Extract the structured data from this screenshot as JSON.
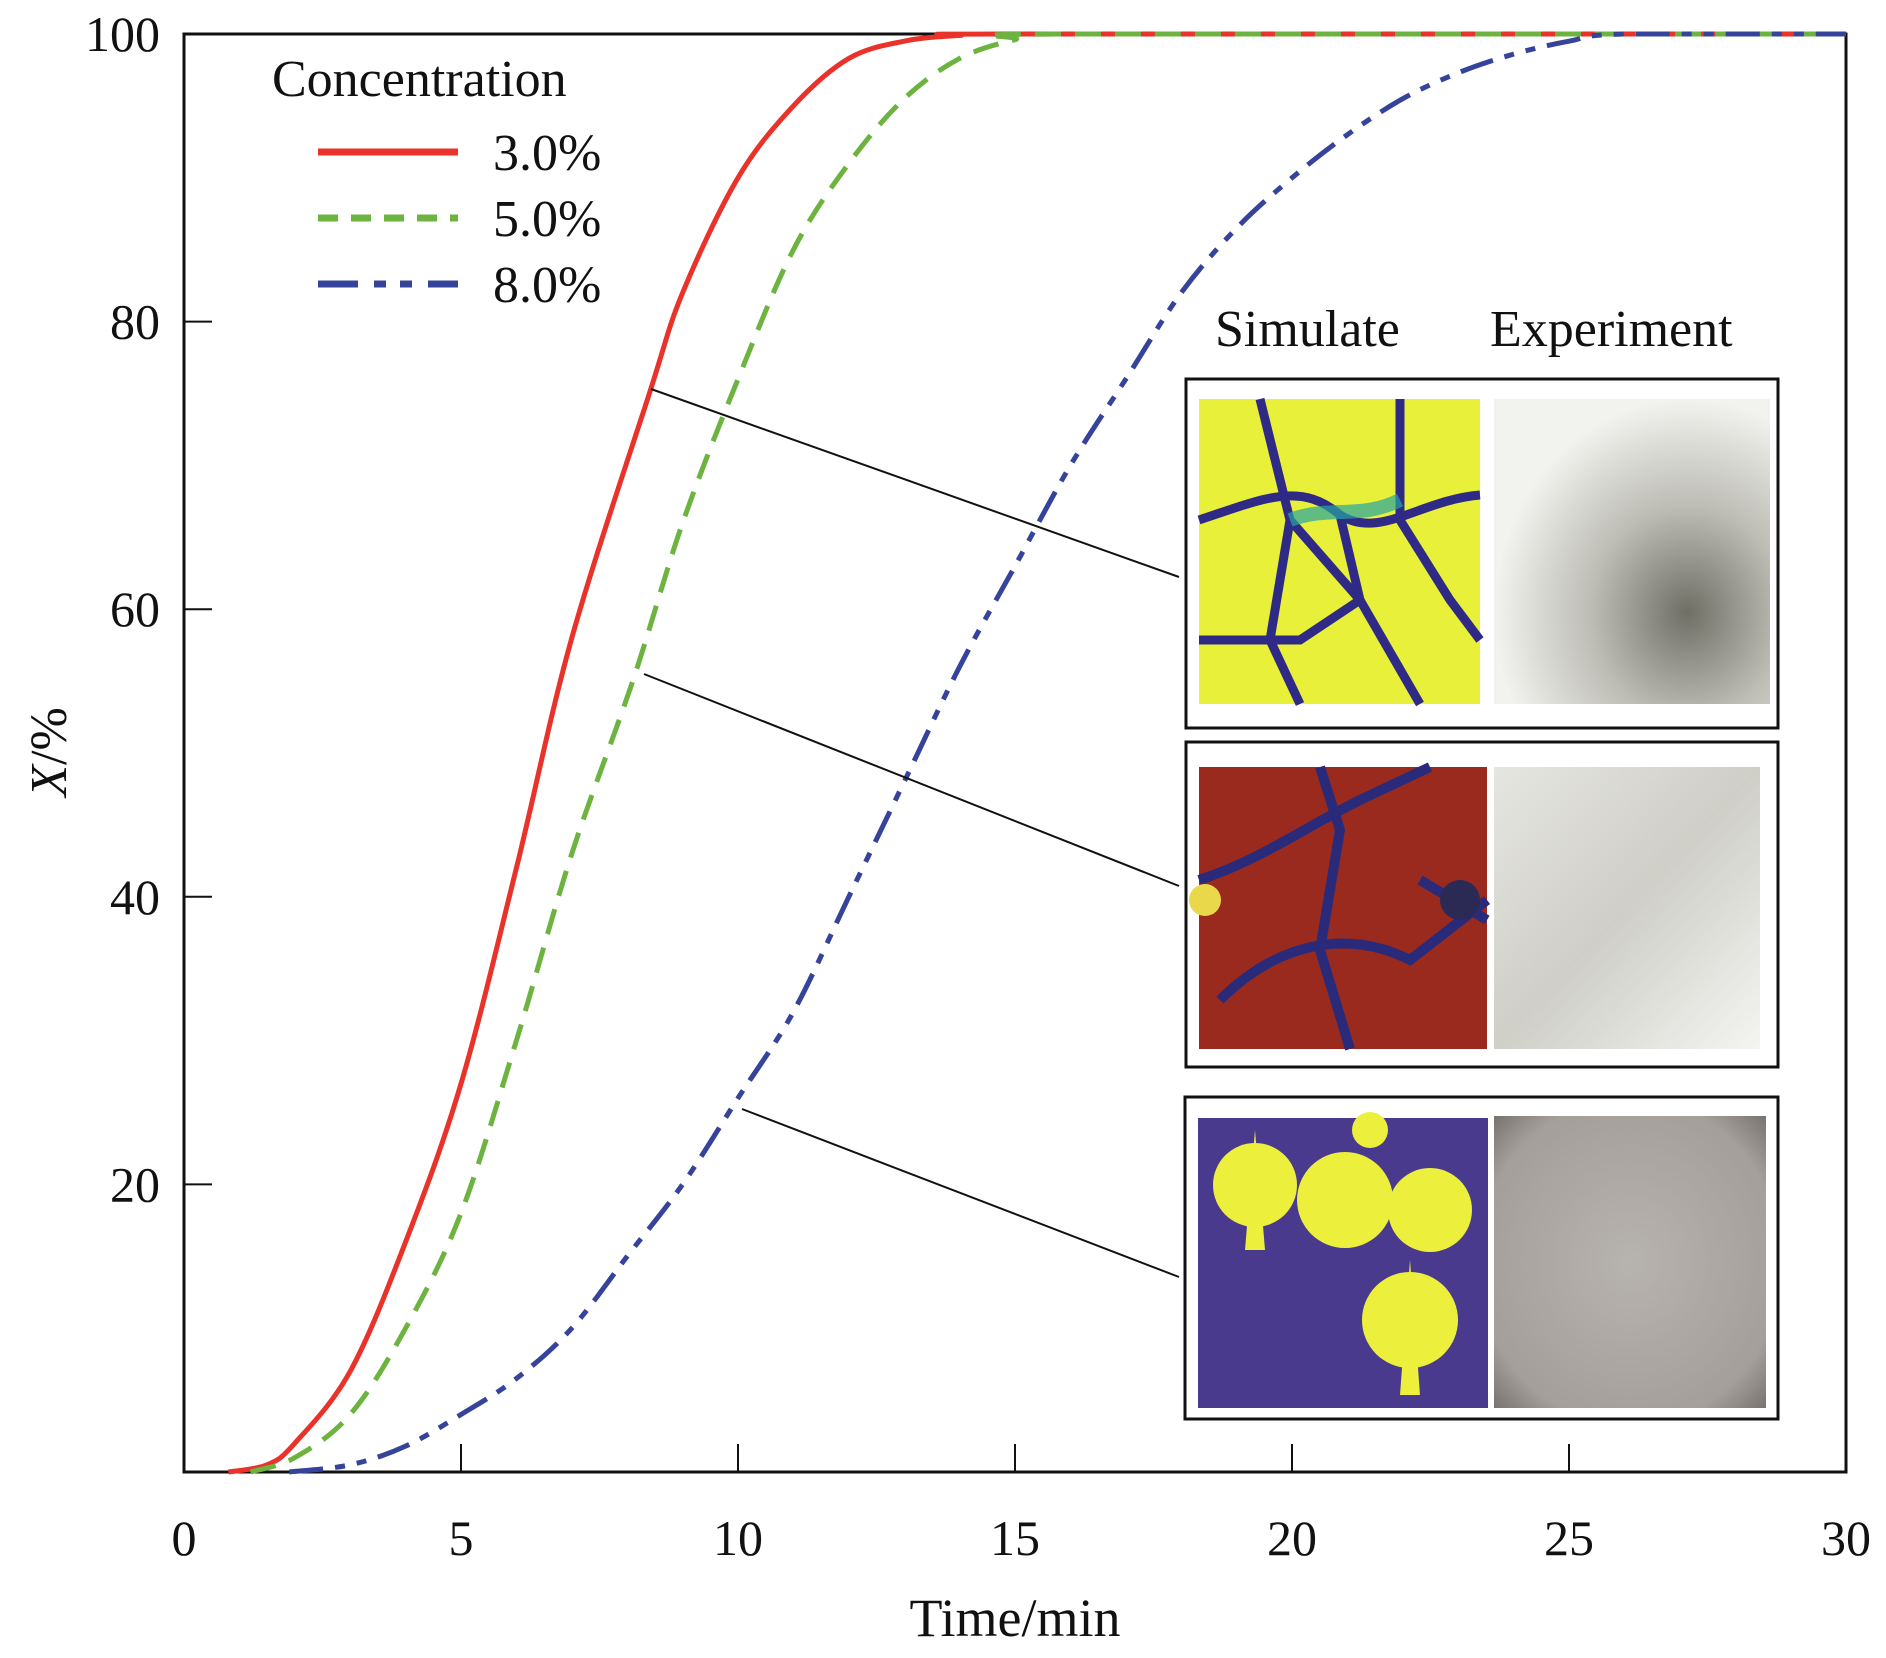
{
  "chart_data": {
    "type": "line",
    "title": "",
    "xlabel": "Time/min",
    "ylabel_italic": "X",
    "ylabel_rest": "/%",
    "xlim": [
      0,
      30
    ],
    "ylim": [
      0,
      100
    ],
    "xticks": [
      "0",
      "5",
      "10",
      "15",
      "20",
      "25",
      "30"
    ],
    "yticks": [
      "20",
      "40",
      "60",
      "80",
      "100"
    ],
    "grid": false,
    "legend": {
      "title": "Concentration",
      "placement": "top-left"
    },
    "series": [
      {
        "name": "3.0%",
        "color": "#e8322a",
        "dash": "solid",
        "x": [
          0.8,
          1.5,
          2,
          3,
          4,
          5,
          6,
          7,
          8.4,
          9,
          10,
          11,
          12,
          13,
          14,
          15,
          30
        ],
        "y": [
          0,
          0.5,
          2,
          7,
          16,
          27,
          42,
          58,
          75,
          82,
          90,
          95,
          98.3,
          99.5,
          99.9,
          100,
          100
        ]
      },
      {
        "name": "5.0%",
        "color": "#6db33f",
        "dash": "dashed",
        "x": [
          1.2,
          2,
          3,
          4,
          5,
          6,
          7,
          8.1,
          9,
          10,
          11,
          12,
          13,
          14,
          15,
          15.8,
          30
        ],
        "y": [
          0,
          1,
          4,
          10,
          18,
          30,
          43,
          55,
          66,
          76,
          85,
          91,
          95.5,
          98.3,
          99.6,
          100,
          100
        ]
      },
      {
        "name": "8.0%",
        "color": "#35439a",
        "dash": "dash-dot-dot",
        "x": [
          1.9,
          3,
          4,
          5,
          6,
          7,
          8,
          9,
          10,
          11,
          12,
          13,
          14,
          15,
          16,
          17,
          18,
          19,
          20,
          21,
          22,
          23,
          24,
          25,
          26,
          30
        ],
        "y": [
          0,
          0.5,
          1.8,
          4,
          6.5,
          10,
          15,
          20,
          26,
          32,
          40,
          48,
          56,
          63,
          70,
          76,
          82,
          86.5,
          90,
          93,
          95.5,
          97.3,
          98.6,
          99.5,
          100,
          100
        ]
      }
    ],
    "inset": {
      "column_labels": [
        "Simulate",
        "Experiment"
      ],
      "panels": [
        {
          "linked_series": "3.0%",
          "at_x": 8.4,
          "at_y": 75
        },
        {
          "linked_series": "5.0%",
          "at_x": 8.1,
          "at_y": 55
        },
        {
          "linked_series": "8.0%",
          "at_x": 10,
          "at_y": 26
        }
      ]
    }
  }
}
